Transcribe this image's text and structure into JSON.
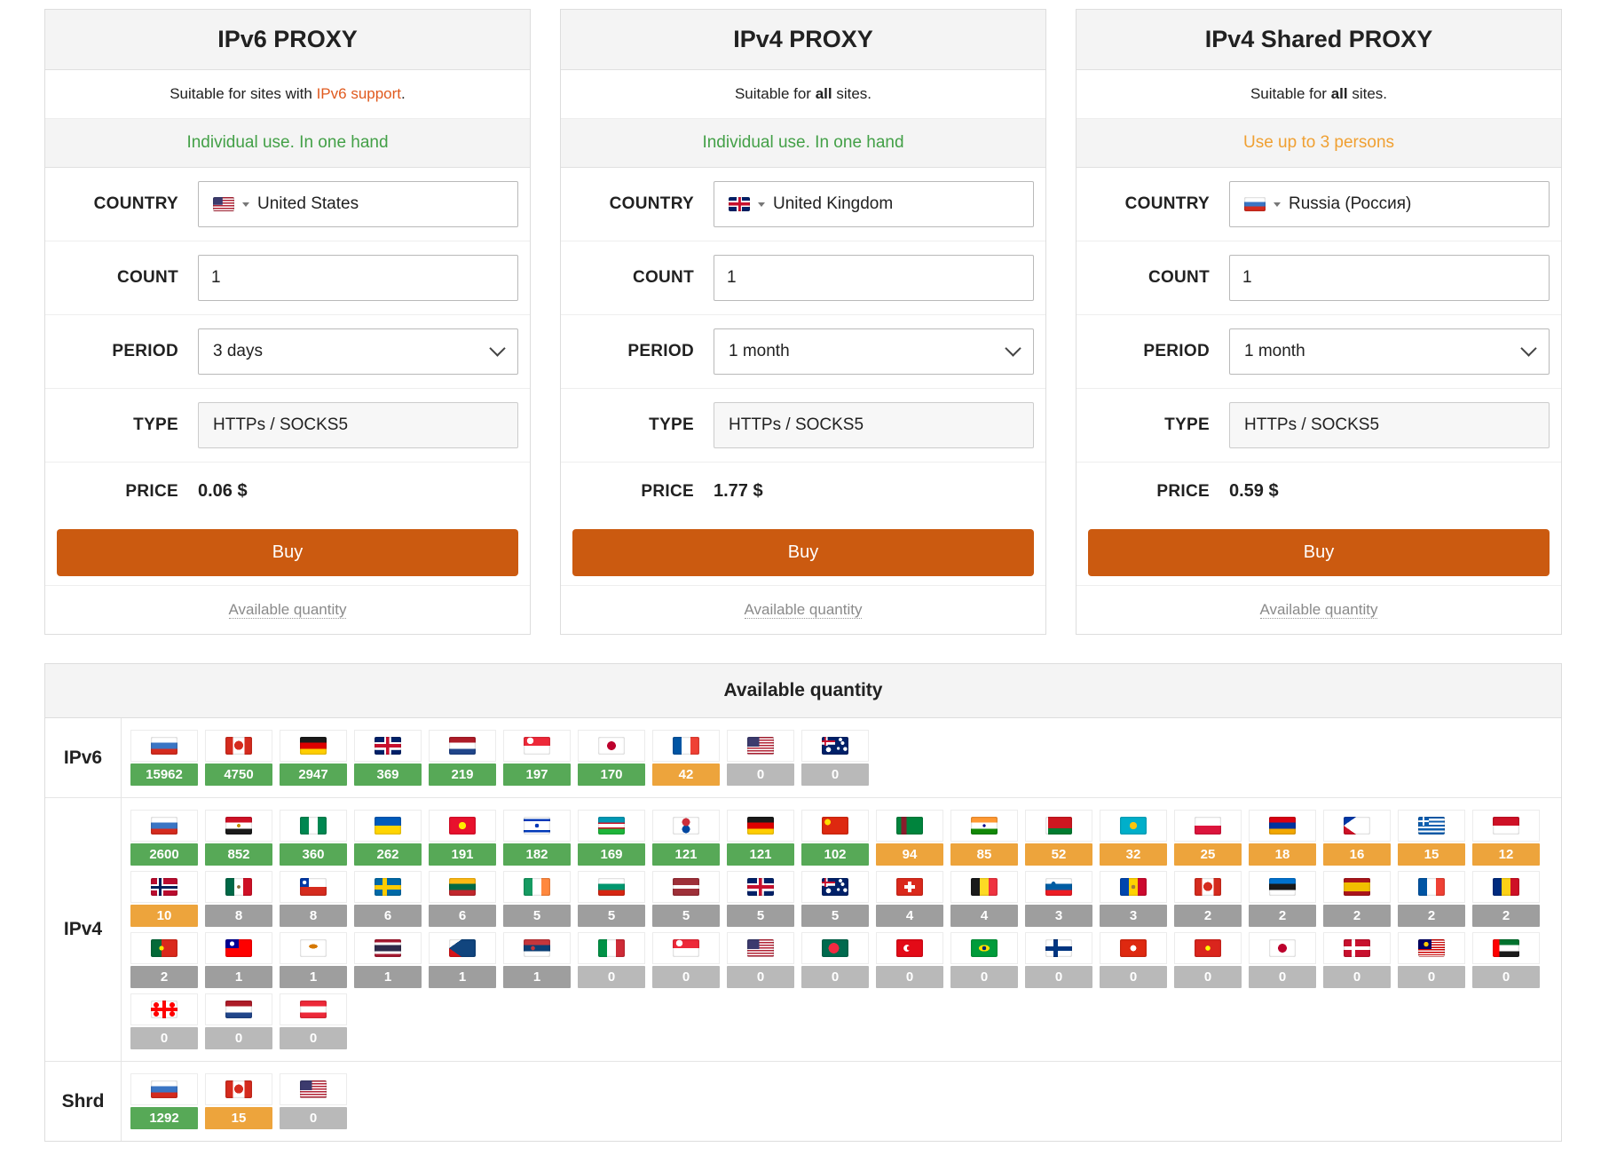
{
  "field_labels": {
    "country": "COUNTRY",
    "count": "COUNT",
    "period": "PERIOD",
    "type": "TYPE",
    "price": "PRICE"
  },
  "cards": [
    {
      "title": "IPv6 PROXY",
      "subtitle": {
        "p1": "Suitable for sites with ",
        "p2": "IPv6 support",
        "p3": "."
      },
      "usage": "Individual use. In one hand",
      "country": {
        "code": "us",
        "name": "United States"
      },
      "count": "1",
      "period": "3 days",
      "type": "HTTPs / SOCKS5",
      "price": "0.06 $",
      "buy": "Buy",
      "link": "Available quantity"
    },
    {
      "title": "IPv4 PROXY",
      "subtitle": {
        "p1": "Suitable for ",
        "p2": "all",
        "p3": " sites."
      },
      "usage": "Individual use. In one hand",
      "country": {
        "code": "gb",
        "name": "United Kingdom"
      },
      "count": "1",
      "period": "1 month",
      "type": "HTTPs / SOCKS5",
      "price": "1.77 $",
      "buy": "Buy",
      "link": "Available quantity"
    },
    {
      "title": "IPv4 Shared PROXY",
      "subtitle": {
        "p1": "Suitable for ",
        "p2": "all",
        "p3": " sites."
      },
      "usage": "Use up to 3 persons",
      "country": {
        "code": "ru",
        "name": "Russia (Россия)"
      },
      "count": "1",
      "period": "1 month",
      "type": "HTTPs / SOCKS5",
      "price": "0.59 $",
      "buy": "Buy",
      "link": "Available quantity"
    }
  ],
  "table": {
    "title": "Available quantity",
    "rows": [
      {
        "label": "IPv6",
        "cells": [
          {
            "c": "ru",
            "v": "15962",
            "s": "g"
          },
          {
            "c": "ca",
            "v": "4750",
            "s": "g"
          },
          {
            "c": "de",
            "v": "2947",
            "s": "g"
          },
          {
            "c": "gb",
            "v": "369",
            "s": "g"
          },
          {
            "c": "nl",
            "v": "219",
            "s": "g"
          },
          {
            "c": "sg",
            "v": "197",
            "s": "g"
          },
          {
            "c": "jp",
            "v": "170",
            "s": "g"
          },
          {
            "c": "fr",
            "v": "42",
            "s": "o"
          },
          {
            "c": "us",
            "v": "0",
            "s": "z"
          },
          {
            "c": "au",
            "v": "0",
            "s": "z"
          }
        ]
      },
      {
        "label": "IPv4",
        "cells": [
          {
            "c": "ru",
            "v": "2600",
            "s": "g"
          },
          {
            "c": "eg",
            "v": "852",
            "s": "g"
          },
          {
            "c": "ng",
            "v": "360",
            "s": "g"
          },
          {
            "c": "ua",
            "v": "262",
            "s": "g"
          },
          {
            "c": "kg",
            "v": "191",
            "s": "g"
          },
          {
            "c": "il",
            "v": "182",
            "s": "g"
          },
          {
            "c": "uz",
            "v": "169",
            "s": "g"
          },
          {
            "c": "kr",
            "v": "121",
            "s": "g"
          },
          {
            "c": "de",
            "v": "121",
            "s": "g"
          },
          {
            "c": "cn",
            "v": "102",
            "s": "g"
          },
          {
            "c": "tm",
            "v": "94",
            "s": "o"
          },
          {
            "c": "in",
            "v": "85",
            "s": "o"
          },
          {
            "c": "by",
            "v": "52",
            "s": "o"
          },
          {
            "c": "kz",
            "v": "32",
            "s": "o"
          },
          {
            "c": "pl",
            "v": "25",
            "s": "o"
          },
          {
            "c": "am",
            "v": "18",
            "s": "o"
          },
          {
            "c": "ph",
            "v": "16",
            "s": "o"
          },
          {
            "c": "gr",
            "v": "15",
            "s": "o"
          },
          {
            "c": "id",
            "v": "12",
            "s": "o"
          },
          {
            "c": "no",
            "v": "10",
            "s": "o"
          },
          {
            "c": "mx",
            "v": "8",
            "s": "d"
          },
          {
            "c": "cl",
            "v": "8",
            "s": "d"
          },
          {
            "c": "se",
            "v": "6",
            "s": "d"
          },
          {
            "c": "lt",
            "v": "6",
            "s": "d"
          },
          {
            "c": "ie",
            "v": "5",
            "s": "d"
          },
          {
            "c": "bg",
            "v": "5",
            "s": "d"
          },
          {
            "c": "lv",
            "v": "5",
            "s": "d"
          },
          {
            "c": "gb",
            "v": "5",
            "s": "d"
          },
          {
            "c": "au",
            "v": "5",
            "s": "d"
          },
          {
            "c": "ch",
            "v": "4",
            "s": "d"
          },
          {
            "c": "be",
            "v": "4",
            "s": "d"
          },
          {
            "c": "si",
            "v": "3",
            "s": "d"
          },
          {
            "c": "md",
            "v": "3",
            "s": "d"
          },
          {
            "c": "ca",
            "v": "2",
            "s": "d"
          },
          {
            "c": "ee",
            "v": "2",
            "s": "d"
          },
          {
            "c": "es",
            "v": "2",
            "s": "d"
          },
          {
            "c": "fr",
            "v": "2",
            "s": "d"
          },
          {
            "c": "ro",
            "v": "2",
            "s": "d"
          },
          {
            "c": "pt",
            "v": "2",
            "s": "d"
          },
          {
            "c": "tw",
            "v": "1",
            "s": "d"
          },
          {
            "c": "cy",
            "v": "1",
            "s": "d"
          },
          {
            "c": "th",
            "v": "1",
            "s": "d"
          },
          {
            "c": "cz",
            "v": "1",
            "s": "d"
          },
          {
            "c": "rs",
            "v": "1",
            "s": "d"
          },
          {
            "c": "it",
            "v": "0",
            "s": "z"
          },
          {
            "c": "sg",
            "v": "0",
            "s": "z"
          },
          {
            "c": "us",
            "v": "0",
            "s": "z"
          },
          {
            "c": "bd",
            "v": "0",
            "s": "z"
          },
          {
            "c": "tr",
            "v": "0",
            "s": "z"
          },
          {
            "c": "br",
            "v": "0",
            "s": "z"
          },
          {
            "c": "fi",
            "v": "0",
            "s": "z"
          },
          {
            "c": "hk",
            "v": "0",
            "s": "z"
          },
          {
            "c": "vn",
            "v": "0",
            "s": "z"
          },
          {
            "c": "jp",
            "v": "0",
            "s": "z"
          },
          {
            "c": "dk",
            "v": "0",
            "s": "z"
          },
          {
            "c": "my",
            "v": "0",
            "s": "z"
          },
          {
            "c": "ae",
            "v": "0",
            "s": "z"
          },
          {
            "c": "ge",
            "v": "0",
            "s": "z"
          },
          {
            "c": "nl",
            "v": "0",
            "s": "z"
          },
          {
            "c": "at",
            "v": "0",
            "s": "z"
          }
        ]
      },
      {
        "label": "Shrd",
        "cells": [
          {
            "c": "ru",
            "v": "1292",
            "s": "g"
          },
          {
            "c": "ca",
            "v": "15",
            "s": "o"
          },
          {
            "c": "us",
            "v": "0",
            "s": "z"
          }
        ]
      }
    ]
  },
  "colors": {
    "buy_button": "#cb5a10",
    "link_orange": "#e05a1e",
    "usage_green": "#43a047",
    "usage_orange": "#f0a032",
    "badge_high": "#57a957",
    "badge_mid": "#eda43c",
    "badge_low": "#9e9e9e",
    "badge_zero": "#b9b9b9"
  }
}
